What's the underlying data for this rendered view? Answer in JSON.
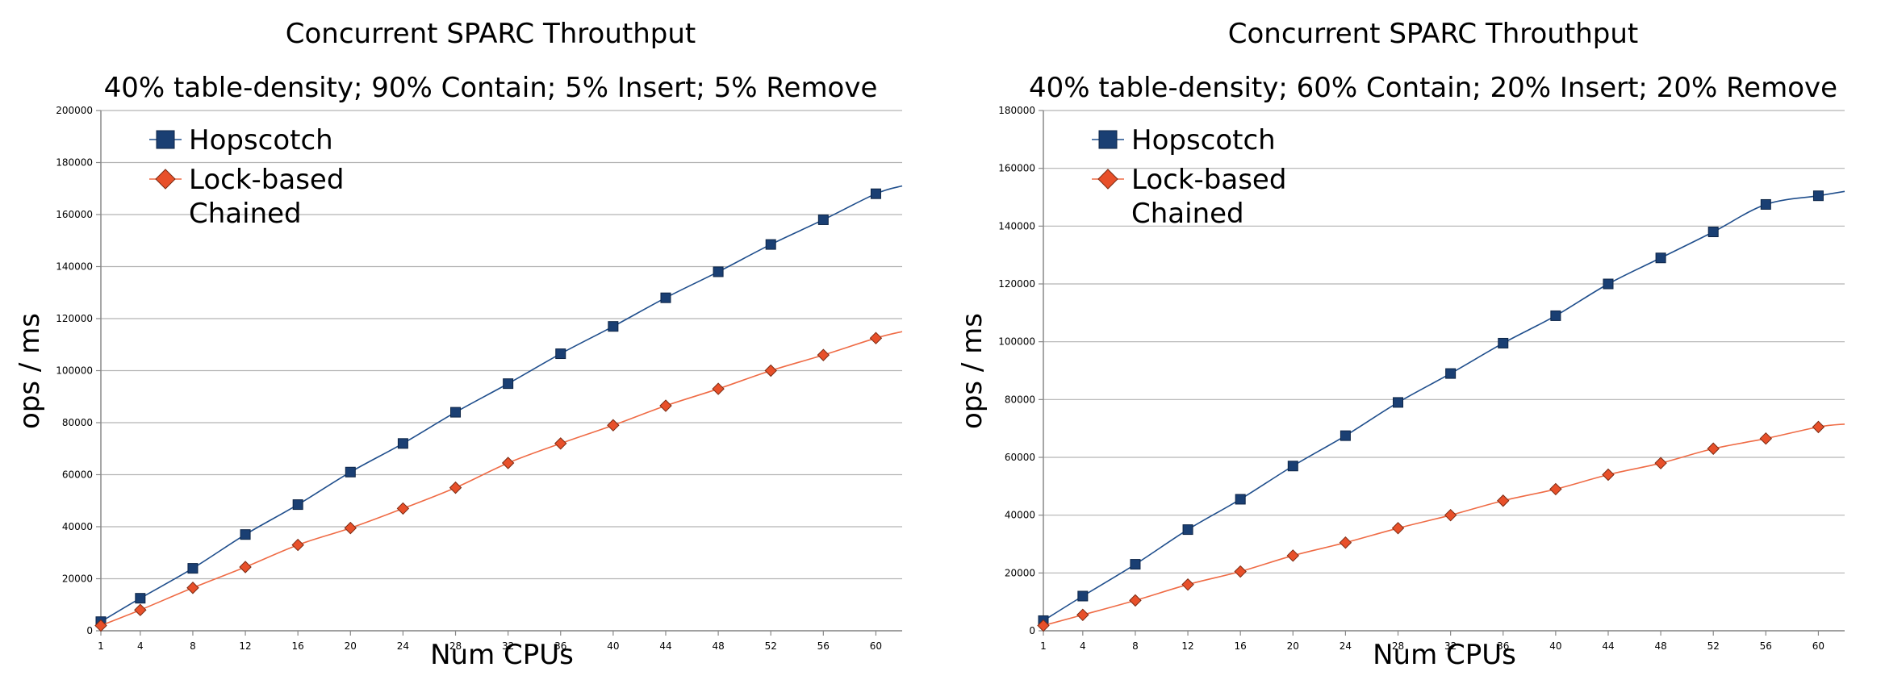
{
  "chart_data": [
    {
      "type": "line",
      "title": "Concurrent SPARC Throuthput",
      "subtitle": "40% table-density; 90% Contain; 5% Insert; 5% Remove",
      "xlabel": "Num CPUs",
      "ylabel": "ops / ms",
      "categories": [
        "1",
        "4",
        "8",
        "12",
        "16",
        "20",
        "24",
        "28",
        "32",
        "36",
        "40",
        "44",
        "48",
        "52",
        "56",
        "60"
      ],
      "x": [
        1,
        4,
        8,
        12,
        16,
        20,
        24,
        28,
        32,
        36,
        40,
        44,
        48,
        52,
        56,
        60
      ],
      "xlim": [
        1,
        62
      ],
      "ylim": [
        0,
        200000
      ],
      "yticks": [
        0,
        20000,
        40000,
        60000,
        80000,
        100000,
        120000,
        140000,
        160000,
        180000,
        200000
      ],
      "grid": true,
      "legend_position": "top-left",
      "series": [
        {
          "name": "Hopscotch",
          "marker": "square",
          "color": "#1f4e8c",
          "fill": "#1a3f73",
          "values": [
            3500,
            12500,
            24000,
            37000,
            48500,
            61000,
            72000,
            84000,
            95000,
            106500,
            117000,
            128000,
            138000,
            148500,
            158000,
            168000
          ],
          "tail": 171000
        },
        {
          "name": "Lock-based Chained",
          "marker": "diamond",
          "color": "#ef6b45",
          "fill": "#e8502a",
          "values": [
            2000,
            8000,
            16500,
            24500,
            33000,
            39500,
            47000,
            55000,
            64500,
            72000,
            79000,
            86500,
            93000,
            100000,
            106000,
            112500
          ],
          "tail": 115000
        }
      ]
    },
    {
      "type": "line",
      "title": "Concurrent SPARC Throuthput",
      "subtitle": "40% table-density; 60% Contain; 20% Insert; 20% Remove",
      "xlabel": "Num CPUs",
      "ylabel": "ops / ms",
      "categories": [
        "1",
        "4",
        "8",
        "12",
        "16",
        "20",
        "24",
        "28",
        "32",
        "36",
        "40",
        "44",
        "48",
        "52",
        "56",
        "60"
      ],
      "x": [
        1,
        4,
        8,
        12,
        16,
        20,
        24,
        28,
        32,
        36,
        40,
        44,
        48,
        52,
        56,
        60
      ],
      "xlim": [
        1,
        62
      ],
      "ylim": [
        0,
        180000
      ],
      "yticks": [
        0,
        20000,
        40000,
        60000,
        80000,
        100000,
        120000,
        140000,
        160000,
        180000
      ],
      "grid": true,
      "legend_position": "top-left",
      "series": [
        {
          "name": "Hopscotch",
          "marker": "square",
          "color": "#1f4e8c",
          "fill": "#1a3f73",
          "values": [
            3500,
            12000,
            23000,
            35000,
            45500,
            57000,
            67500,
            79000,
            89000,
            99500,
            109000,
            120000,
            129000,
            138000,
            147500,
            150500
          ],
          "tail": 152000
        },
        {
          "name": "Lock-based Chained",
          "marker": "diamond",
          "color": "#ef6b45",
          "fill": "#e8502a",
          "values": [
            1800,
            5500,
            10500,
            16000,
            20500,
            26000,
            30500,
            35500,
            40000,
            45000,
            49000,
            54000,
            58000,
            63000,
            66500,
            70500
          ],
          "tail": 71500
        }
      ]
    }
  ]
}
